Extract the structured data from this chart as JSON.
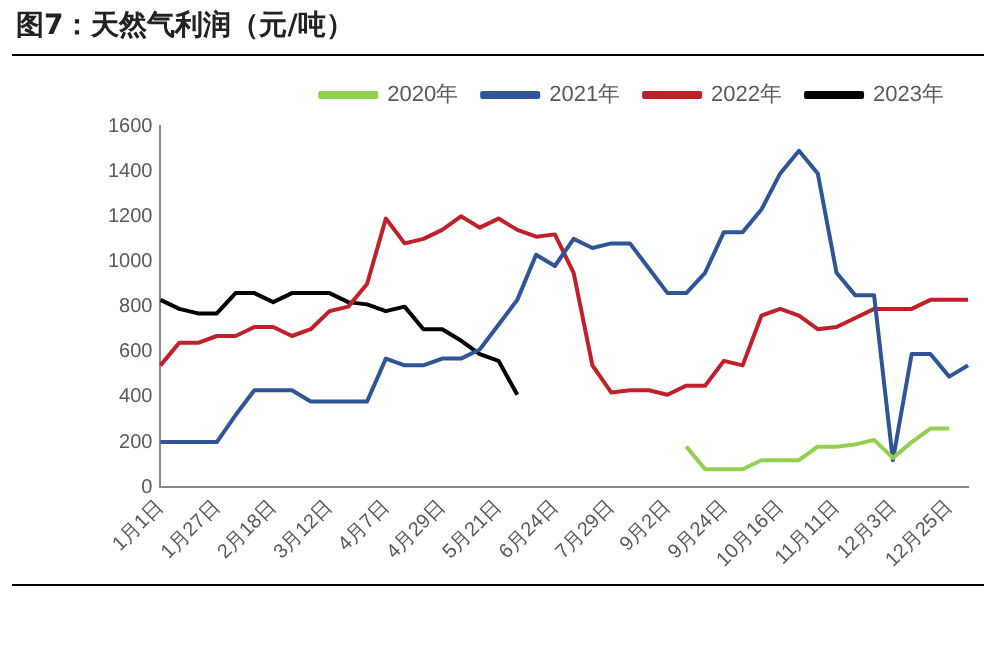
{
  "chart_data": {
    "type": "line",
    "title": "图7：天然气利润（元/吨）",
    "categories": [
      "1月1日",
      null,
      null,
      "1月27日",
      null,
      null,
      "2月18日",
      null,
      null,
      "3月12日",
      null,
      null,
      "4月7日",
      null,
      null,
      "4月29日",
      null,
      null,
      "5月21日",
      null,
      null,
      "6月24日",
      null,
      null,
      "7月29日",
      null,
      null,
      "9月2日",
      null,
      null,
      "9月24日",
      null,
      null,
      "10月16日",
      null,
      null,
      "11月11日",
      null,
      null,
      "12月3日",
      null,
      null,
      "12月25日",
      null
    ],
    "series": [
      {
        "name": "2020年",
        "color": "#92d050",
        "values": [
          null,
          null,
          null,
          null,
          null,
          null,
          null,
          null,
          null,
          null,
          null,
          null,
          null,
          null,
          null,
          null,
          null,
          null,
          null,
          null,
          null,
          null,
          null,
          null,
          null,
          null,
          null,
          null,
          180,
          80,
          80,
          80,
          120,
          120,
          120,
          180,
          180,
          190,
          210,
          130,
          200,
          260,
          260,
          null
        ]
      },
      {
        "name": "2021年",
        "color": "#2f5597",
        "values": [
          200,
          200,
          200,
          200,
          320,
          430,
          430,
          430,
          380,
          380,
          380,
          380,
          570,
          540,
          540,
          570,
          570,
          610,
          720,
          830,
          1030,
          980,
          1100,
          1060,
          1080,
          1080,
          970,
          860,
          860,
          950,
          1130,
          1130,
          1230,
          1390,
          1490,
          1390,
          950,
          850,
          850,
          120,
          590,
          590,
          490,
          540
        ]
      },
      {
        "name": "2022年",
        "color": "#c0202a",
        "values": [
          540,
          640,
          640,
          670,
          670,
          710,
          710,
          670,
          700,
          780,
          800,
          900,
          1190,
          1080,
          1100,
          1140,
          1200,
          1150,
          1190,
          1140,
          1110,
          1120,
          950,
          540,
          420,
          430,
          430,
          410,
          450,
          450,
          560,
          540,
          760,
          790,
          760,
          700,
          710,
          750,
          790,
          790,
          790,
          830,
          830,
          830
        ]
      },
      {
        "name": "2023年",
        "color": "#000000",
        "values": [
          830,
          790,
          770,
          770,
          860,
          860,
          820,
          860,
          860,
          860,
          820,
          810,
          780,
          800,
          700,
          700,
          650,
          590,
          560,
          410,
          null,
          null,
          null,
          null,
          null,
          null,
          null,
          null,
          null,
          null,
          null,
          null,
          null,
          null,
          null,
          null,
          null,
          null,
          null,
          null,
          null,
          null,
          null,
          null
        ]
      }
    ],
    "ylim": [
      0,
      1600
    ],
    "yticks": [
      0,
      200,
      400,
      600,
      800,
      1000,
      1200,
      1400,
      1600
    ],
    "grid": false,
    "legend": "top",
    "marker": "none",
    "line_style": "solid"
  }
}
